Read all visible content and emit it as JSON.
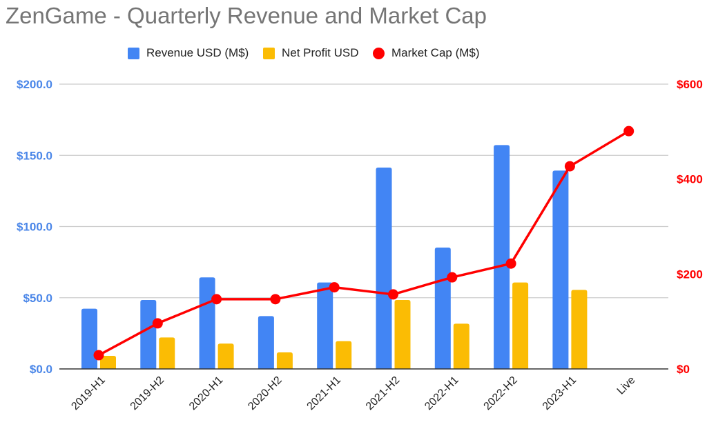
{
  "chart_data": {
    "type": "bar",
    "title": "ZenGame - Quarterly Revenue and Market Cap",
    "xlabel": "",
    "ylabel": "",
    "categories": [
      "2019-H1",
      "2019-H2",
      "2020-H1",
      "2020-H2",
      "2021-H1",
      "2021-H2",
      "2022-H1",
      "2022-H2",
      "2023-H1",
      "Live"
    ],
    "series": [
      {
        "name": "Revenue USD (M$)",
        "type": "bar",
        "axis": "left",
        "color": "#4285F4",
        "values": [
          42.3,
          48.4,
          64.3,
          37.1,
          60.7,
          141.4,
          85.2,
          157.2,
          139.3,
          null
        ]
      },
      {
        "name": "Net Profit USD",
        "type": "bar",
        "axis": "left",
        "color": "#FBBC04",
        "values": [
          9.2,
          22.1,
          17.8,
          11.6,
          19.5,
          48.4,
          31.8,
          60.7,
          55.5,
          null
        ]
      },
      {
        "name": "Market Cap (M$)",
        "type": "line",
        "axis": "right",
        "color": "#FF0000",
        "values": [
          29,
          96,
          147,
          147,
          172,
          157,
          193,
          222,
          427,
          501
        ]
      }
    ],
    "left_axis": {
      "range": [
        0,
        200
      ],
      "ticks": [
        0,
        50,
        100,
        150,
        200
      ],
      "tick_labels": [
        "$0.0",
        "$50.0",
        "$100.0",
        "$150.0",
        "$200.0"
      ],
      "color": "#4A86E8"
    },
    "right_axis": {
      "range": [
        0,
        600
      ],
      "ticks": [
        0,
        200,
        400,
        600
      ],
      "tick_labels": [
        "$0",
        "$200",
        "$400",
        "$600"
      ],
      "color": "#FF0000"
    },
    "grid": true,
    "legend": "top-center"
  }
}
